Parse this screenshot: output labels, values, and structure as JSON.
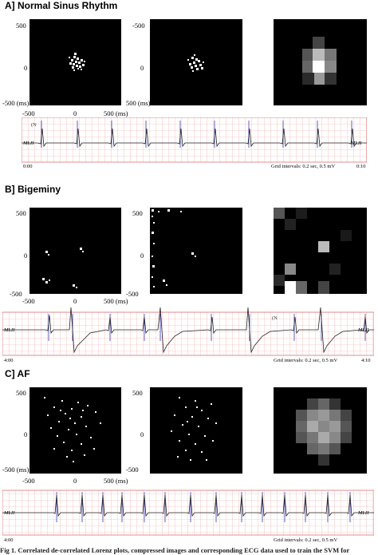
{
  "sections": [
    {
      "title": "A] Normal Sinus Rhythm",
      "panel1": {
        "y_ticks": [
          "500",
          "0",
          "-500 (ms)"
        ]
      },
      "panel2": {
        "y_ticks": [
          "-500",
          "0",
          "500 (ms)"
        ]
      },
      "x_ticks": [
        "-500",
        "0",
        "500 (ms)"
      ],
      "ecg": {
        "lead_left": "MLII",
        "lead_right": "MLII",
        "time_start": "0:00",
        "time_end": "0:10",
        "grid_note": "Grid intervals: 0.2 sec, 0.5 mV",
        "annotation": "(N"
      }
    },
    {
      "title": "B] Bigeminy",
      "panel1": {
        "y_ticks": [
          "500",
          "0",
          "-500"
        ]
      },
      "panel2": {
        "y_ticks": [
          "500",
          "0",
          "-500"
        ]
      },
      "x_ticks": [
        "-500",
        "0",
        "500 (ms)"
      ],
      "ecg": {
        "lead_left": "MLII",
        "lead_right": "MLII",
        "time_start": "4:00",
        "time_end": "4:10",
        "grid_note": "Grid intervals: 0.2 sec, 0.5 mV",
        "annotation": "(N"
      }
    },
    {
      "title": "C] AF",
      "panel1": {
        "y_ticks": [
          "500",
          "0",
          "-500 (ms)"
        ]
      },
      "panel2": {
        "y_ticks": [
          "500",
          "0",
          "-500"
        ]
      },
      "x_ticks": [
        "-500",
        "0",
        "500 (ms)"
      ],
      "ecg": {
        "lead_left": "MLII",
        "lead_right": "MLII",
        "time_start": "4:00",
        "time_end": "",
        "grid_note": "Grid intervals: 0.2 sec, 0.5 mV",
        "annotation": ""
      }
    }
  ],
  "caption": "Fig 1. Correlated de-correlated Lorenz plots, compressed images and corresponding ECG data used to train the SVM for"
}
